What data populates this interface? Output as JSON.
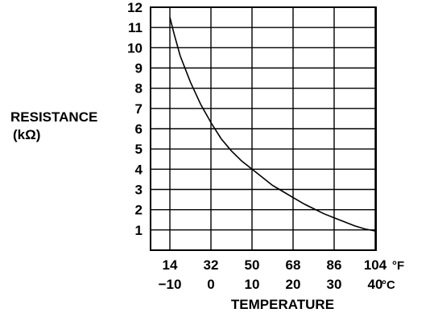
{
  "chart_data": {
    "type": "line",
    "title": "",
    "ylabel": "RESISTANCE",
    "ylabel_unit": "(kΩ)",
    "xlabel": "TEMPERATURE",
    "ylim": [
      0,
      12
    ],
    "y_ticks": [
      1,
      2,
      3,
      4,
      5,
      6,
      7,
      8,
      9,
      10,
      11,
      12
    ],
    "xlim_c": [
      -10,
      40
    ],
    "x_ticks_f": [
      "14",
      "32",
      "50",
      "68",
      "86",
      "104"
    ],
    "x_ticks_c": [
      "−10",
      "0",
      "10",
      "20",
      "30",
      "40"
    ],
    "x_unit_f": "°F",
    "x_unit_c": "°C",
    "grid": true,
    "series": [
      {
        "x": [
          -10,
          -9,
          -7.5,
          -5,
          -2.5,
          0,
          2.5,
          5,
          7.5,
          10,
          12.5,
          15,
          17.5,
          20,
          22.5,
          25,
          27.5,
          30,
          32.5,
          35,
          37.5,
          40
        ],
        "y": [
          11.5,
          10.7,
          9.6,
          8.3,
          7.2,
          6.3,
          5.5,
          4.9,
          4.4,
          4.0,
          3.6,
          3.2,
          2.9,
          2.6,
          2.3,
          2.05,
          1.8,
          1.6,
          1.4,
          1.2,
          1.05,
          0.95
        ]
      }
    ],
    "colors": {
      "line": "#000000",
      "grid": "#000000",
      "background": "#ffffff"
    }
  }
}
